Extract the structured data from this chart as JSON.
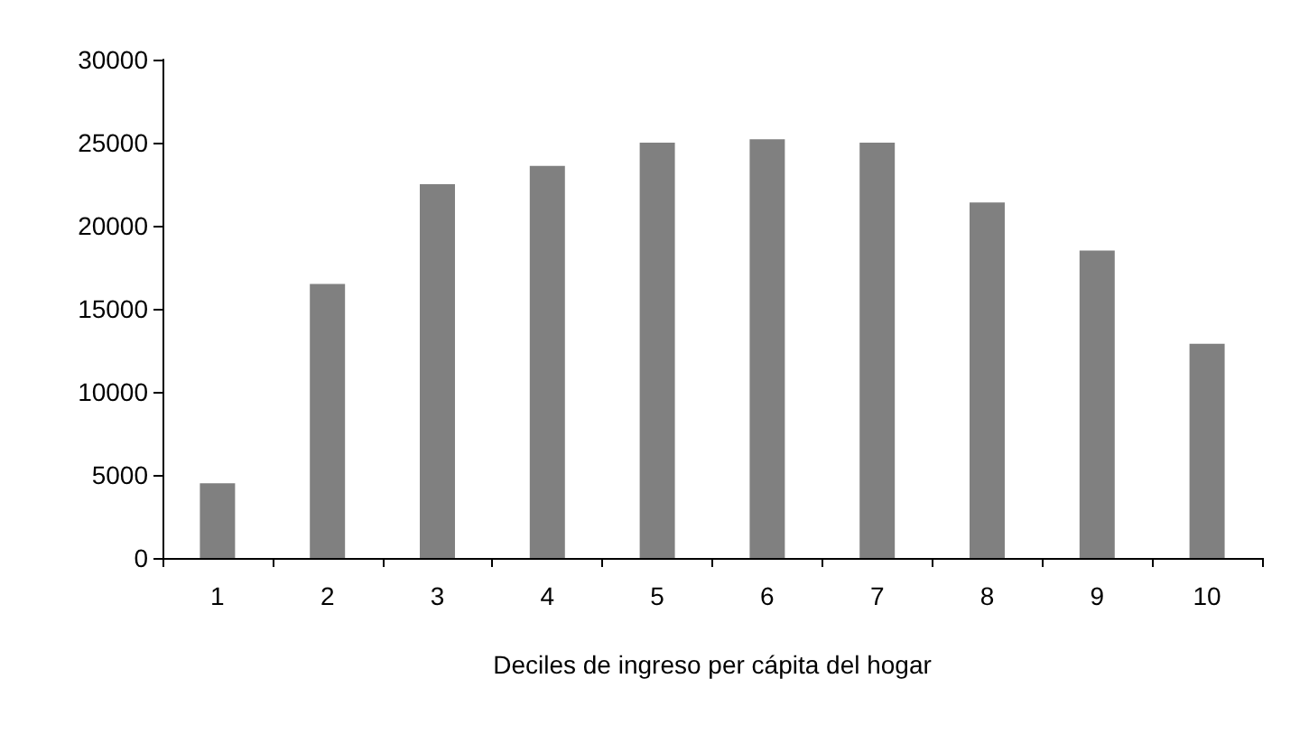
{
  "chart_data": {
    "type": "bar",
    "xlabel": "Deciles de ingreso per cápita del hogar",
    "categories": [
      "1",
      "2",
      "3",
      "4",
      "5",
      "6",
      "7",
      "8",
      "9",
      "10"
    ],
    "values": [
      4500,
      16500,
      22500,
      23600,
      25000,
      25200,
      25000,
      21400,
      18500,
      12900
    ],
    "color": "#808080",
    "ylim": [
      0,
      30000
    ],
    "yticks": [
      0,
      5000,
      10000,
      15000,
      20000,
      25000,
      30000
    ],
    "grid": false
  }
}
